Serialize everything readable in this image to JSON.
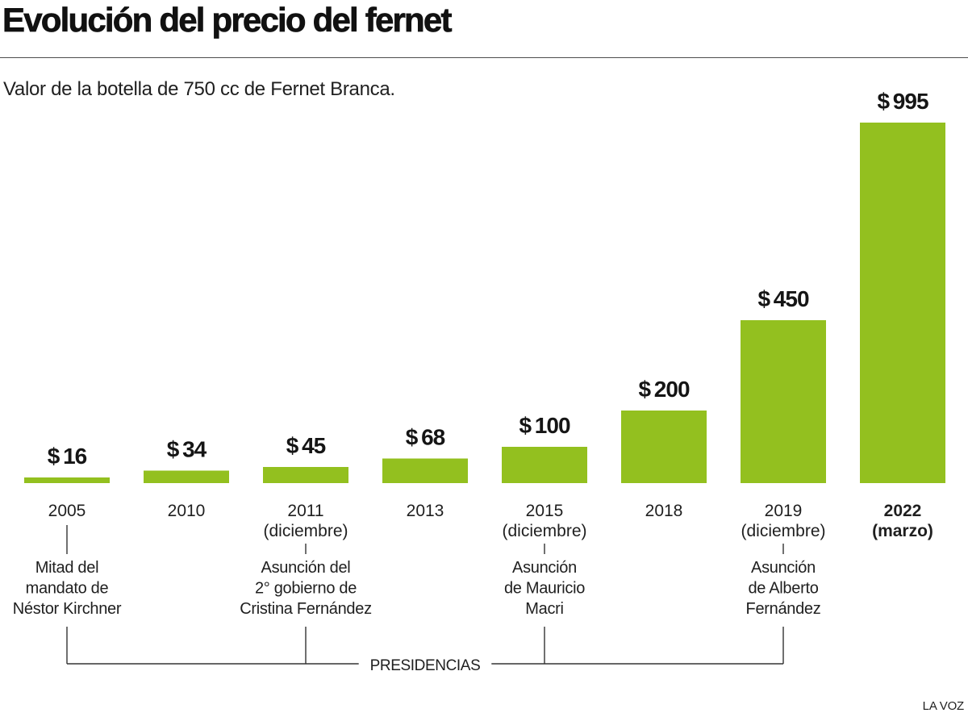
{
  "colors": {
    "bar": "#93c01f",
    "text": "#1f1f1f",
    "rule": "#4d4d4d"
  },
  "source": "LA VOZ",
  "chart_data": {
    "type": "bar",
    "title": "Evolución del precio del fernet",
    "subtitle": "Valor de la botella de 750 cc de Fernet Branca.",
    "categories": [
      "2005",
      "2010",
      "2011",
      "2013",
      "2015",
      "2018",
      "2019",
      "2022"
    ],
    "category_notes": [
      "",
      "",
      "(diciembre)",
      "",
      "(diciembre)",
      "",
      "(diciembre)",
      "(marzo)"
    ],
    "values": [
      16,
      34,
      45,
      68,
      100,
      200,
      450,
      995
    ],
    "value_labels": [
      "$ 16",
      "$ 34",
      "$ 45",
      "$ 68",
      "$ 100",
      "$ 200",
      "$ 450",
      "$ 995"
    ],
    "bold_labels": [
      false,
      false,
      false,
      false,
      false,
      false,
      false,
      true
    ],
    "ylim": [
      0,
      995
    ],
    "grid": false,
    "annotations": {
      "label": "PRESIDENCIAS",
      "items": [
        {
          "category": "2005",
          "lines": [
            "Mitad del",
            "mandato de",
            "Néstor Kirchner"
          ]
        },
        {
          "category": "2011",
          "lines": [
            "Asunción del",
            "2° gobierno de",
            "Cristina Fernández"
          ]
        },
        {
          "category": "2015",
          "lines": [
            "Asunción",
            "de Mauricio",
            "Macri"
          ]
        },
        {
          "category": "2019",
          "lines": [
            "Asunción",
            "de Alberto",
            "Fernández"
          ]
        }
      ]
    }
  }
}
